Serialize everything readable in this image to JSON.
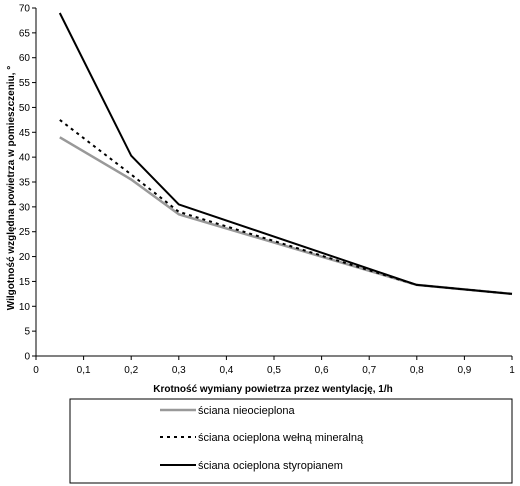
{
  "chart_data": {
    "type": "line",
    "title": "",
    "xlabel": "Krotność wymiany powietrza przez wentylację, 1/h",
    "ylabel": "Wilgotność względna powietrza w pomieszczeniu, °",
    "xlim": [
      0,
      1
    ],
    "ylim": [
      0,
      70
    ],
    "x_ticks": [
      "0",
      "0,1",
      "0,2",
      "0,3",
      "0,4",
      "0,5",
      "0,6",
      "0,7",
      "0,8",
      "0,9",
      "1"
    ],
    "y_ticks": [
      "0",
      "5",
      "10",
      "15",
      "20",
      "25",
      "30",
      "35",
      "40",
      "45",
      "50",
      "55",
      "60",
      "65",
      "70"
    ],
    "grid": false,
    "legend_position": "bottom",
    "series": [
      {
        "name": "ściana nieocieplona",
        "color": "#999999",
        "style": "solid",
        "x": [
          0.05,
          0.2,
          0.3,
          0.8,
          1.0
        ],
        "y": [
          44,
          35.5,
          28.5,
          14.3,
          12.5
        ]
      },
      {
        "name": "ściana ocieplona wełną mineralną",
        "color": "#000000",
        "style": "dotted",
        "x": [
          0.05,
          0.2,
          0.3,
          0.8,
          1.0
        ],
        "y": [
          47.5,
          36.5,
          29,
          14.3,
          12.5
        ]
      },
      {
        "name": "ściana ocieplona styropianem",
        "color": "#000000",
        "style": "solid",
        "x": [
          0.05,
          0.2,
          0.3,
          0.8,
          1.0
        ],
        "y": [
          69,
          40.3,
          30.5,
          14.3,
          12.5
        ]
      }
    ]
  }
}
